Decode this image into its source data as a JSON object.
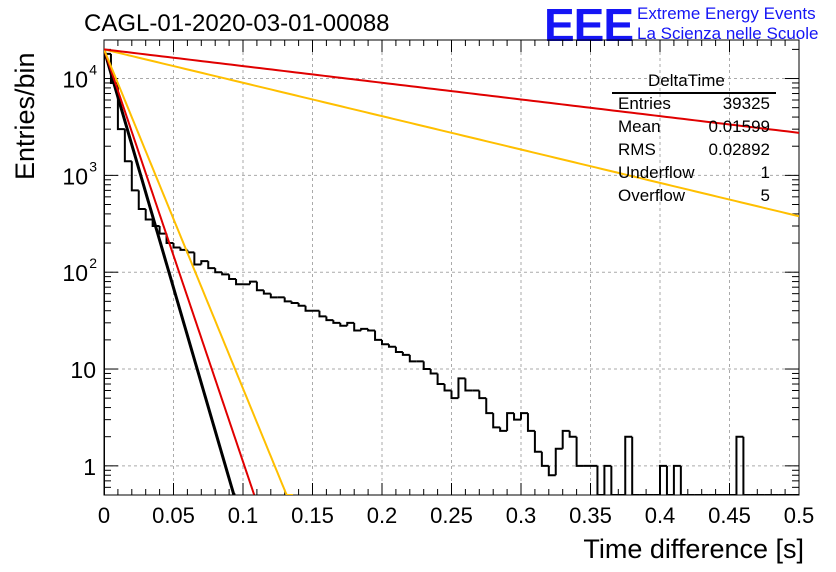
{
  "title": "CAGL-01-2020-03-01-00088",
  "logo": {
    "letters": "EEE",
    "line1": "Extreme Energy Events",
    "line2": "La Scienza nelle Scuole"
  },
  "colors": {
    "histogram": "#000000",
    "fit_black": "#000000",
    "fit_red": "#e00000",
    "fit_yellow": "#ffbf00",
    "logo_blue": "#1515f5",
    "grid": "#aaaaaa"
  },
  "stats": {
    "name": "DeltaTime",
    "rows": [
      {
        "label": "Entries",
        "value": "39325"
      },
      {
        "label": "Mean",
        "value": "0.01599"
      },
      {
        "label": "RMS",
        "value": "0.02892"
      },
      {
        "label": "Underflow",
        "value": "1"
      },
      {
        "label": "Overflow",
        "value": "5"
      }
    ]
  },
  "chart_data": {
    "type": "histogram",
    "title": "CAGL-01-2020-03-01-00088",
    "xlabel": "Time difference [s]",
    "ylabel": "Entries/bin",
    "xlim": [
      0,
      0.5
    ],
    "ylim": [
      0.5,
      25000
    ],
    "log_y": true,
    "grid": true,
    "x_ticks": [
      "0",
      "0.05",
      "0.1",
      "0.15",
      "0.2",
      "0.25",
      "0.3",
      "0.35",
      "0.4",
      "0.45",
      "0.5"
    ],
    "y_ticks": [
      {
        "base": "1",
        "exp": ""
      },
      {
        "base": "10",
        "exp": ""
      },
      {
        "base": "10",
        "exp": "2"
      },
      {
        "base": "10",
        "exp": "3"
      },
      {
        "base": "10",
        "exp": "4"
      }
    ],
    "bin_width": 0.005,
    "histogram": [
      18000,
      9000,
      3000,
      1400,
      700,
      450,
      350,
      300,
      250,
      200,
      180,
      170,
      160,
      120,
      130,
      110,
      100,
      95,
      85,
      75,
      75,
      80,
      65,
      60,
      55,
      55,
      50,
      48,
      45,
      40,
      40,
      35,
      32,
      30,
      28,
      30,
      25,
      26,
      25,
      20,
      18,
      17,
      15,
      14,
      12,
      12,
      10,
      9,
      7,
      6,
      5,
      8,
      6,
      6,
      5,
      3.5,
      2.5,
      2.3,
      3.5,
      3,
      3.5,
      2.3,
      1.4,
      1,
      0.8,
      1.5,
      2.3,
      2,
      1,
      1,
      1,
      0.5,
      1,
      0.5,
      0.5,
      2,
      0.5,
      0.5,
      0.5,
      0.5,
      1,
      0.5,
      1,
      0.5,
      0.5,
      0.5,
      0.5,
      0.5,
      0.5,
      0.5,
      0.5,
      2,
      0.5,
      0.5,
      0.5,
      0.5,
      0.5,
      0.5,
      0.5,
      0.5
    ],
    "fits": [
      {
        "color": "#000000",
        "A": 20000,
        "tau": 0.00882,
        "x_end": 0.094
      },
      {
        "color": "#e00000",
        "A": 20000,
        "tau": 0.0102,
        "x_end": 0.108
      },
      {
        "color": "#ffbf00",
        "A": 20000,
        "tau": 0.0124,
        "x_end": 0.136
      },
      {
        "color": "#ffbf00",
        "A": 20000,
        "tau": 0.126,
        "x_end": 0.5
      },
      {
        "color": "#e00000",
        "A": 20000,
        "tau": 0.252,
        "x_end": 0.5
      }
    ]
  }
}
